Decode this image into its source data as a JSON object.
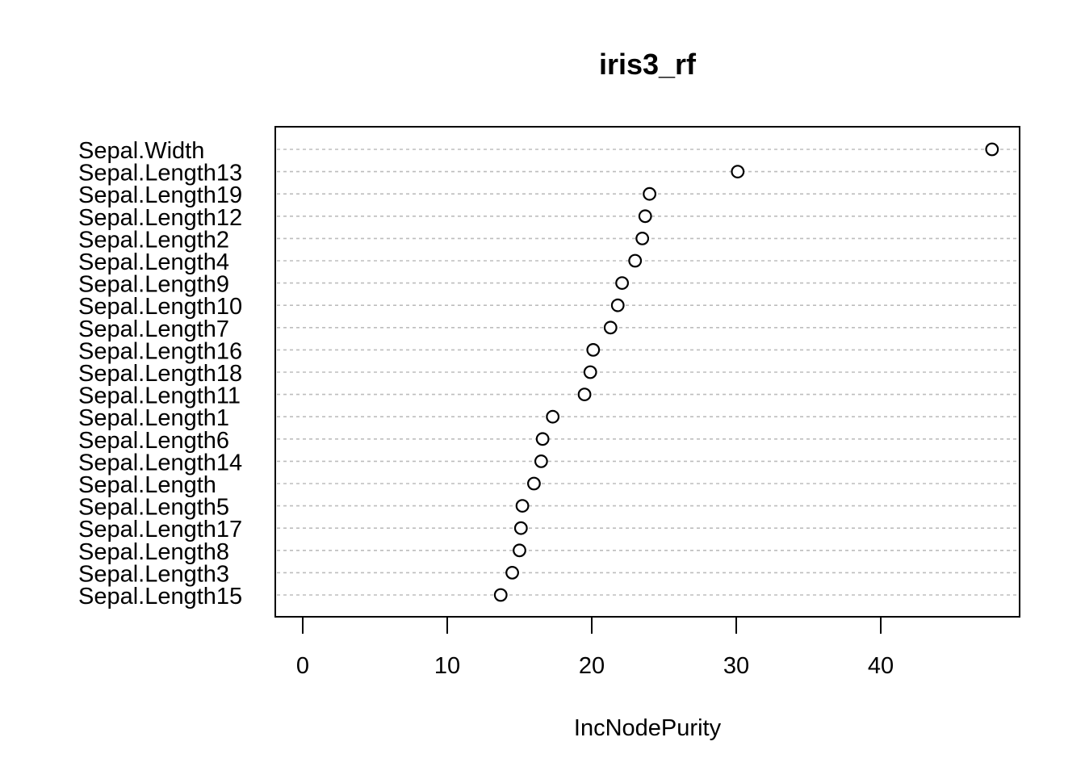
{
  "chart_data": {
    "type": "scatter",
    "title": "iris3_rf",
    "xlabel": "IncNodePurity",
    "ylabel": "",
    "xlim": [
      -1.9,
      49.6
    ],
    "xticks": [
      0,
      10,
      20,
      30,
      40
    ],
    "grid": "horizontal-dashed",
    "categories": [
      "Sepal.Width",
      "Sepal.Length13",
      "Sepal.Length19",
      "Sepal.Length12",
      "Sepal.Length2",
      "Sepal.Length4",
      "Sepal.Length9",
      "Sepal.Length10",
      "Sepal.Length7",
      "Sepal.Length16",
      "Sepal.Length18",
      "Sepal.Length11",
      "Sepal.Length1",
      "Sepal.Length6",
      "Sepal.Length14",
      "Sepal.Length",
      "Sepal.Length5",
      "Sepal.Length17",
      "Sepal.Length8",
      "Sepal.Length3",
      "Sepal.Length15"
    ],
    "values": [
      47.7,
      30.1,
      24.0,
      23.7,
      23.5,
      23.0,
      22.1,
      21.8,
      21.3,
      20.1,
      19.9,
      19.5,
      17.3,
      16.6,
      16.5,
      16.0,
      15.2,
      15.1,
      15.0,
      14.5,
      13.7
    ]
  }
}
